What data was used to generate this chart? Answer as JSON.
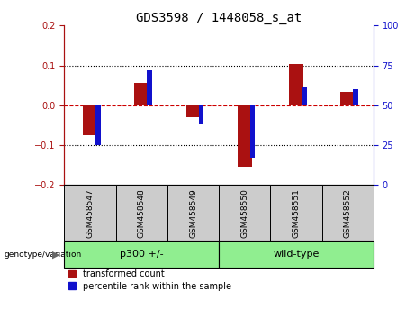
{
  "title": "GDS3598 / 1448058_s_at",
  "samples": [
    "GSM458547",
    "GSM458548",
    "GSM458549",
    "GSM458550",
    "GSM458551",
    "GSM458552"
  ],
  "red_values": [
    -0.075,
    0.057,
    -0.03,
    -0.155,
    0.103,
    0.033
  ],
  "blue_values_pct": [
    25,
    72,
    38,
    17,
    62,
    60
  ],
  "groups": [
    {
      "label": "p300 +/-",
      "indices": [
        0,
        1,
        2
      ],
      "color": "#90EE90"
    },
    {
      "label": "wild-type",
      "indices": [
        3,
        4,
        5
      ],
      "color": "#90EE90"
    }
  ],
  "group_label_prefix": "genotype/variation",
  "ylim_left": [
    -0.2,
    0.2
  ],
  "ylim_right": [
    0,
    100
  ],
  "yticks_left": [
    -0.2,
    -0.1,
    0.0,
    0.1,
    0.2
  ],
  "yticks_right": [
    0,
    25,
    50,
    75,
    100
  ],
  "red_color": "#AA1111",
  "blue_color": "#1111CC",
  "bar_width": 0.28,
  "blue_bar_width": 0.1,
  "hline_color": "#CC0000",
  "dotted_color": "black",
  "legend_labels": [
    "transformed count",
    "percentile rank within the sample"
  ],
  "sample_box_color": "#CCCCCC",
  "group_box_color": "#90EE90"
}
